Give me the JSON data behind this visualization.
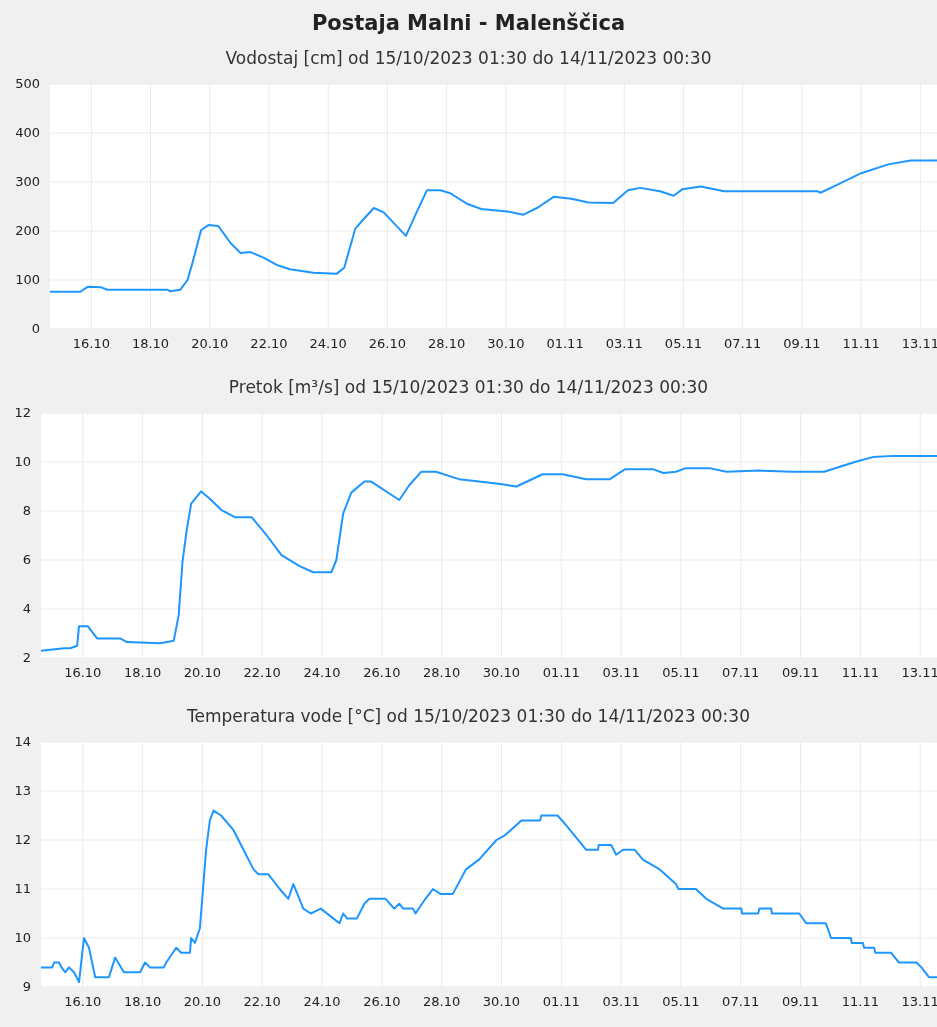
{
  "chart_data": [
    {
      "type": "line",
      "title": "Postaja Malni - Malenščica",
      "subtitle": "Vodostaj [cm] od 15/10/2023 01:30 do 14/11/2023 00:30",
      "grid": true,
      "xlim": [
        "2023-10-15T01:30",
        "2023-11-14T00:30"
      ],
      "xticks": [
        {
          "value": "2023-10-16T11:00",
          "label": "16.10"
        },
        {
          "value": "2023-10-18T11:00",
          "label": "18.10"
        },
        {
          "value": "2023-10-20T11:00",
          "label": "20.10"
        },
        {
          "value": "2023-10-22T11:00",
          "label": "22.10"
        },
        {
          "value": "2023-10-24T11:00",
          "label": "24.10"
        },
        {
          "value": "2023-10-26T11:00",
          "label": "26.10"
        },
        {
          "value": "2023-10-28T11:00",
          "label": "28.10"
        },
        {
          "value": "2023-10-30T11:00",
          "label": "30.10"
        },
        {
          "value": "2023-11-01T11:00",
          "label": "01.11"
        },
        {
          "value": "2023-11-03T11:00",
          "label": "03.11"
        },
        {
          "value": "2023-11-05T11:00",
          "label": "05.11"
        },
        {
          "value": "2023-11-07T11:00",
          "label": "07.11"
        },
        {
          "value": "2023-11-09T11:00",
          "label": "09.11"
        },
        {
          "value": "2023-11-11T11:00",
          "label": "11.11"
        },
        {
          "value": "2023-11-13T11:00",
          "label": "13.11"
        }
      ],
      "ylim": [
        0,
        500
      ],
      "yticks": [
        0,
        100,
        200,
        300,
        400,
        500
      ],
      "series": [
        {
          "color": "#1e96ff",
          "x": [
            "2023-10-15T01:30",
            "2023-10-16T02:00",
            "2023-10-16T08:00",
            "2023-10-16T19:00",
            "2023-10-17T00:00",
            "2023-10-19T01:00",
            "2023-10-19T03:00",
            "2023-10-19T11:00",
            "2023-10-19T17:00",
            "2023-10-19T21:00",
            "2023-10-20T04:00",
            "2023-10-20T10:00",
            "2023-10-20T18:00",
            "2023-10-21T04:00",
            "2023-10-21T12:00",
            "2023-10-21T20:00",
            "2023-10-22T07:00",
            "2023-10-22T18:00",
            "2023-10-23T04:00",
            "2023-10-23T23:00",
            "2023-10-24T18:00",
            "2023-10-25T00:00",
            "2023-10-25T09:00",
            "2023-10-25T16:00",
            "2023-10-26T00:00",
            "2023-10-26T08:00",
            "2023-10-27T02:00",
            "2023-10-27T11:00",
            "2023-10-27T19:00",
            "2023-10-28T06:00",
            "2023-10-28T14:00",
            "2023-10-29T04:00",
            "2023-10-29T15:00",
            "2023-10-30T12:00",
            "2023-10-31T01:00",
            "2023-10-31T13:00",
            "2023-11-01T02:00",
            "2023-11-01T16:00",
            "2023-11-02T06:00",
            "2023-11-03T02:00",
            "2023-11-03T14:00",
            "2023-11-04T00:00",
            "2023-11-04T16:00",
            "2023-11-05T03:00",
            "2023-11-05T10:00",
            "2023-11-06T01:00",
            "2023-11-06T20:00",
            "2023-11-10T00:00",
            "2023-11-10T02:00",
            "2023-11-10T13:00",
            "2023-11-11T11:00",
            "2023-11-12T09:00",
            "2023-11-13T03:00",
            "2023-11-14T00:30"
          ],
          "values": [
            76,
            76,
            86,
            85,
            80,
            80,
            77,
            80,
            100,
            135,
            202,
            212,
            210,
            175,
            155,
            157,
            145,
            130,
            122,
            115,
            113,
            125,
            205,
            225,
            247,
            238,
            190,
            240,
            283,
            283,
            277,
            255,
            245,
            240,
            233,
            248,
            270,
            266,
            258,
            257,
            283,
            288,
            281,
            272,
            285,
            291,
            281,
            281,
            278,
            291,
            318,
            336,
            344,
            344
          ]
        }
      ]
    },
    {
      "type": "line",
      "title": "Pretok [m³/s] od 15/10/2023 01:30 do 14/11/2023 00:30",
      "grid": true,
      "xlim": [
        "2023-10-15T01:30",
        "2023-11-14T00:30"
      ],
      "xticks": [
        {
          "value": "2023-10-16T11:00",
          "label": "16.10"
        },
        {
          "value": "2023-10-18T11:00",
          "label": "18.10"
        },
        {
          "value": "2023-10-20T11:00",
          "label": "20.10"
        },
        {
          "value": "2023-10-22T11:00",
          "label": "22.10"
        },
        {
          "value": "2023-10-24T11:00",
          "label": "24.10"
        },
        {
          "value": "2023-10-26T11:00",
          "label": "26.10"
        },
        {
          "value": "2023-10-28T11:00",
          "label": "28.10"
        },
        {
          "value": "2023-10-30T11:00",
          "label": "30.10"
        },
        {
          "value": "2023-11-01T11:00",
          "label": "01.11"
        },
        {
          "value": "2023-11-03T11:00",
          "label": "03.11"
        },
        {
          "value": "2023-11-05T11:00",
          "label": "05.11"
        },
        {
          "value": "2023-11-07T11:00",
          "label": "07.11"
        },
        {
          "value": "2023-11-09T11:00",
          "label": "09.11"
        },
        {
          "value": "2023-11-11T11:00",
          "label": "11.11"
        },
        {
          "value": "2023-11-13T11:00",
          "label": "13.11"
        }
      ],
      "ylim": [
        2,
        12
      ],
      "yticks": [
        2,
        4,
        6,
        8,
        10,
        12
      ],
      "series": [
        {
          "color": "#1e96ff",
          "x": [
            "2023-10-15T01:30",
            "2023-10-15T20:00",
            "2023-10-16T01:00",
            "2023-10-16T06:30",
            "2023-10-16T08:00",
            "2023-10-16T15:00",
            "2023-10-16T22:30",
            "2023-10-17T17:00",
            "2023-10-17T22:30",
            "2023-10-19T01:00",
            "2023-10-19T12:00",
            "2023-10-19T16:00",
            "2023-10-19T19:00",
            "2023-10-19T22:30",
            "2023-10-20T02:00",
            "2023-10-20T10:00",
            "2023-10-20T17:00",
            "2023-10-21T02:00",
            "2023-10-21T13:00",
            "2023-10-22T02:30",
            "2023-10-22T14:00",
            "2023-10-23T02:30",
            "2023-10-23T17:00",
            "2023-10-24T04:00",
            "2023-10-24T18:30",
            "2023-10-24T22:30",
            "2023-10-25T04:00",
            "2023-10-25T10:30",
            "2023-10-25T21:00",
            "2023-10-26T02:30",
            "2023-10-27T01:00",
            "2023-10-27T09:00",
            "2023-10-27T18:30",
            "2023-10-28T06:30",
            "2023-10-29T01:00",
            "2023-10-29T17:00",
            "2023-10-30T10:00",
            "2023-10-30T23:00",
            "2023-10-31T20:00",
            "2023-11-01T12:00",
            "2023-11-02T07:00",
            "2023-11-03T02:00",
            "2023-11-03T14:00",
            "2023-11-04T13:00",
            "2023-11-04T21:00",
            "2023-11-05T07:00",
            "2023-11-05T15:00",
            "2023-11-06T10:00",
            "2023-11-06T23:30",
            "2023-11-08T02:00",
            "2023-11-09T05:00",
            "2023-11-10T06:00",
            "2023-11-10T21:00",
            "2023-11-11T10:00",
            "2023-11-11T21:00",
            "2023-11-12T13:00",
            "2023-11-14T00:30"
          ],
          "values": [
            2.3,
            2.4,
            2.4,
            2.5,
            3.3,
            3.3,
            2.8,
            2.8,
            2.65,
            2.6,
            2.7,
            3.75,
            5.9,
            7.25,
            8.3,
            8.8,
            8.5,
            8.05,
            7.75,
            7.75,
            7.05,
            6.2,
            5.75,
            5.5,
            5.5,
            6.0,
            7.9,
            8.75,
            9.2,
            9.2,
            8.45,
            9.05,
            9.6,
            9.6,
            9.3,
            9.2,
            9.1,
            9.0,
            9.5,
            9.5,
            9.3,
            9.3,
            9.7,
            9.7,
            9.55,
            9.6,
            9.75,
            9.75,
            9.6,
            9.65,
            9.6,
            9.6,
            9.85,
            10.05,
            10.2,
            10.25,
            10.25
          ]
        }
      ]
    },
    {
      "type": "line",
      "title": "Temperatura vode [°C] od 15/10/2023 01:30 do 14/11/2023 00:30",
      "grid": true,
      "xlim": [
        "2023-10-15T01:30",
        "2023-11-14T00:30"
      ],
      "xticks": [
        {
          "value": "2023-10-16T11:00",
          "label": "16.10"
        },
        {
          "value": "2023-10-18T11:00",
          "label": "18.10"
        },
        {
          "value": "2023-10-20T11:00",
          "label": "20.10"
        },
        {
          "value": "2023-10-22T11:00",
          "label": "22.10"
        },
        {
          "value": "2023-10-24T11:00",
          "label": "24.10"
        },
        {
          "value": "2023-10-26T11:00",
          "label": "26.10"
        },
        {
          "value": "2023-10-28T11:00",
          "label": "28.10"
        },
        {
          "value": "2023-10-30T11:00",
          "label": "30.10"
        },
        {
          "value": "2023-11-01T11:00",
          "label": "01.11"
        },
        {
          "value": "2023-11-03T11:00",
          "label": "03.11"
        },
        {
          "value": "2023-11-05T11:00",
          "label": "05.11"
        },
        {
          "value": "2023-11-07T11:00",
          "label": "07.11"
        },
        {
          "value": "2023-11-09T11:00",
          "label": "09.11"
        },
        {
          "value": "2023-11-11T11:00",
          "label": "11.11"
        },
        {
          "value": "2023-11-13T11:00",
          "label": "13.11"
        }
      ],
      "ylim": [
        9,
        14
      ],
      "yticks": [
        9,
        10,
        11,
        12,
        13,
        14
      ],
      "series": [
        {
          "color": "#1e96ff",
          "x": [
            "2023-10-15T01:30",
            "2023-10-15T10:30",
            "2023-10-15T12:00",
            "2023-10-15T16:00",
            "2023-10-15T18:00",
            "2023-10-15T21:00",
            "2023-10-16T00:00",
            "2023-10-16T04:00",
            "2023-10-16T08:00",
            "2023-10-16T12:00",
            "2023-10-16T16:00",
            "2023-10-16T21:00",
            "2023-10-17T08:00",
            "2023-10-17T13:00",
            "2023-10-17T20:00",
            "2023-10-18T09:00",
            "2023-10-18T13:00",
            "2023-10-18T17:00",
            "2023-10-19T04:00",
            "2023-10-19T06:00",
            "2023-10-19T14:00",
            "2023-10-19T18:00",
            "2023-10-20T01:00",
            "2023-10-20T02:00",
            "2023-10-20T05:00",
            "2023-10-20T09:00",
            "2023-10-20T14:00",
            "2023-10-20T17:00",
            "2023-10-20T20:00",
            "2023-10-21T02:00",
            "2023-10-21T12:00",
            "2023-10-21T20:00",
            "2023-10-22T04:00",
            "2023-10-22T08:00",
            "2023-10-22T16:00",
            "2023-10-23T01:00",
            "2023-10-23T08:00",
            "2023-10-23T12:00",
            "2023-10-23T20:00",
            "2023-10-24T02:00",
            "2023-10-24T10:00",
            "2023-10-24T20:00",
            "2023-10-25T01:00",
            "2023-10-25T04:00",
            "2023-10-25T07:00",
            "2023-10-25T15:00",
            "2023-10-25T21:00",
            "2023-10-26T01:00",
            "2023-10-26T14:00",
            "2023-10-26T21:00",
            "2023-10-27T01:00",
            "2023-10-27T04:00",
            "2023-10-27T12:00",
            "2023-10-27T14:00",
            "2023-10-27T22:00",
            "2023-10-28T04:00",
            "2023-10-28T10:00",
            "2023-10-28T20:00",
            "2023-10-29T06:30",
            "2023-10-29T17:00",
            "2023-10-30T07:00",
            "2023-10-30T14:00",
            "2023-10-31T03:00",
            "2023-10-31T18:00",
            "2023-10-31T19:00",
            "2023-11-01T08:00",
            "2023-11-01T15:00",
            "2023-11-02T07:00",
            "2023-11-02T16:30",
            "2023-11-02T17:00",
            "2023-11-03T03:00",
            "2023-11-03T07:00",
            "2023-11-03T12:30",
            "2023-11-03T22:00",
            "2023-11-04T04:30",
            "2023-11-04T18:00",
            "2023-11-05T07:00",
            "2023-11-05T09:00",
            "2023-11-05T23:00",
            "2023-11-06T07:20",
            "2023-11-06T21:00",
            "2023-11-07T11:30",
            "2023-11-07T12:00",
            "2023-11-08T01:00",
            "2023-11-08T02:00",
            "2023-11-08T11:30",
            "2023-11-08T12:00",
            "2023-11-09T10:00",
            "2023-11-09T15:30",
            "2023-11-10T07:20",
            "2023-11-10T11:30",
            "2023-11-11T03:30",
            "2023-11-11T04:00",
            "2023-11-11T13:00",
            "2023-11-11T14:00",
            "2023-11-11T22:00",
            "2023-11-11T23:00",
            "2023-11-12T11:30",
            "2023-11-12T18:00",
            "2023-11-13T08:00",
            "2023-11-13T12:00",
            "2023-11-13T18:00",
            "2023-11-14T00:30"
          ],
          "values": [
            9.4,
            9.4,
            9.5,
            9.5,
            9.4,
            9.3,
            9.4,
            9.3,
            9.1,
            10.0,
            9.8,
            9.2,
            9.2,
            9.6,
            9.3,
            9.3,
            9.5,
            9.4,
            9.4,
            9.5,
            9.8,
            9.7,
            9.7,
            10.0,
            9.9,
            10.2,
            11.8,
            12.4,
            12.6,
            12.5,
            12.2,
            11.8,
            11.4,
            11.3,
            11.3,
            11.0,
            10.8,
            11.1,
            10.6,
            10.5,
            10.6,
            10.4,
            10.3,
            10.5,
            10.4,
            10.4,
            10.7,
            10.8,
            10.8,
            10.6,
            10.7,
            10.6,
            10.6,
            10.5,
            10.8,
            11.0,
            10.9,
            10.9,
            11.4,
            11.6,
            12.0,
            12.1,
            12.4,
            12.4,
            12.5,
            12.5,
            12.3,
            11.8,
            11.8,
            11.9,
            11.9,
            11.7,
            11.8,
            11.8,
            11.6,
            11.4,
            11.1,
            11.0,
            11.0,
            10.8,
            10.6,
            10.6,
            10.5,
            10.5,
            10.6,
            10.6,
            10.5,
            10.5,
            10.3,
            10.3,
            10.0,
            10.0,
            9.9,
            9.9,
            9.8,
            9.8,
            9.7,
            9.7,
            9.5,
            9.5,
            9.4,
            9.2,
            9.2
          ]
        }
      ]
    }
  ]
}
